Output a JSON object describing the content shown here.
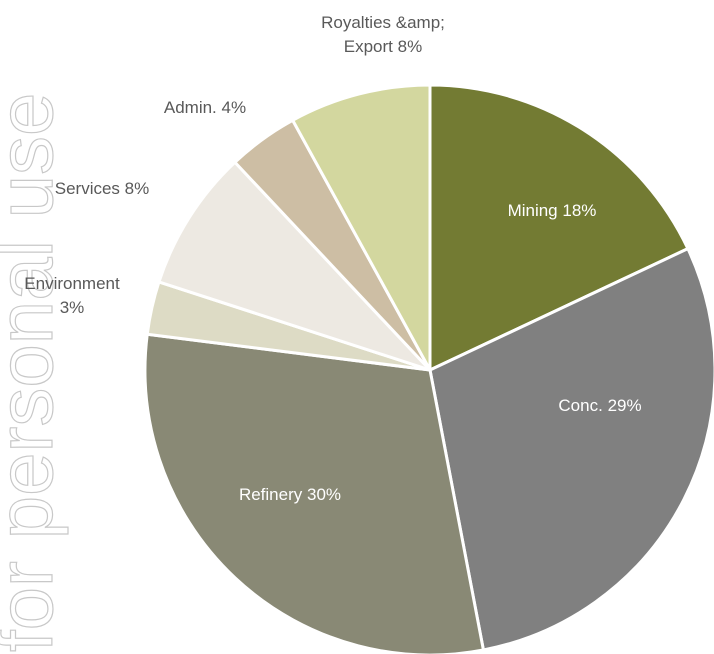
{
  "chart_data": {
    "type": "pie",
    "watermark": "for personal use",
    "categories": [
      "Mining",
      "Conc.",
      "Refinery",
      "Environment",
      "Services",
      "Admin.",
      "Royalties &amp; Export"
    ],
    "values": [
      18,
      29,
      30,
      3,
      8,
      4,
      8
    ],
    "value_labels": [
      "18%",
      "29%",
      "30%",
      "3%",
      "8%",
      "4%",
      "8%"
    ],
    "colors": [
      "#737b33",
      "#808080",
      "#898975",
      "#dddbc5",
      "#ede9e2",
      "#cdbea4",
      "#d3d79f"
    ]
  }
}
